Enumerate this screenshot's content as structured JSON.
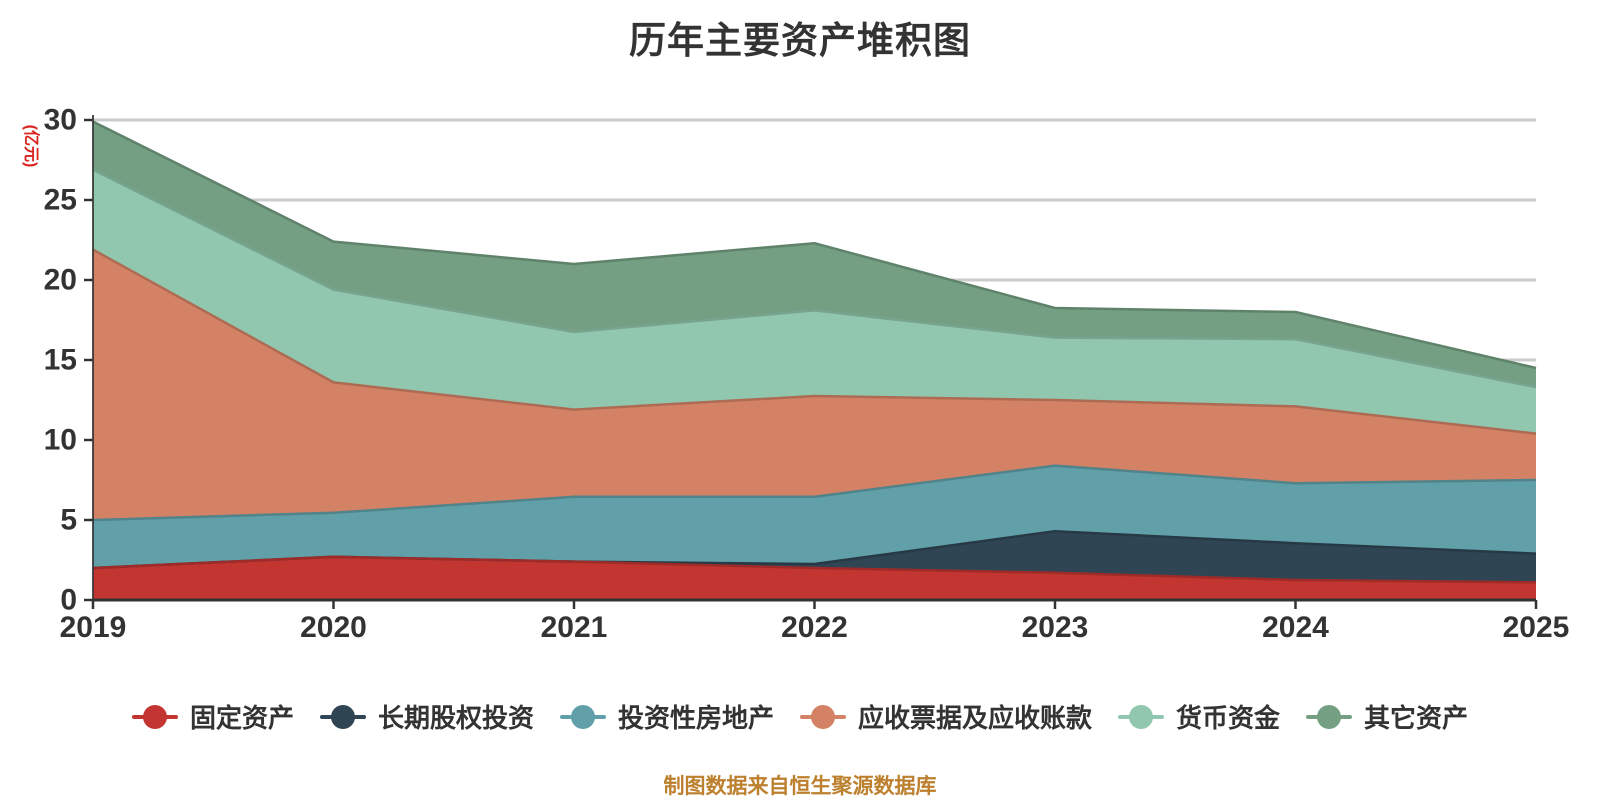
{
  "title": "历年主要资产堆积图",
  "footer": "制图数据来自恒生聚源数据库",
  "y_axis": {
    "name": "(亿元)",
    "tick_labels": [
      "0",
      "5",
      "10",
      "15",
      "20",
      "25",
      "30"
    ],
    "min": 0,
    "max": 30,
    "step": 5
  },
  "x_axis": {
    "labels": [
      "2019",
      "2020",
      "2021",
      "2022",
      "2023",
      "2024",
      "2025"
    ]
  },
  "colors": {
    "title_text": "#333333",
    "axis_text": "#333333",
    "axis_line": "#333333",
    "grid_line": "#cccccc",
    "y_axis_name_red": "#d9231e",
    "footer_gold": "#bc802e",
    "legend_text": "#333333",
    "background": "#ffffff"
  },
  "chart_data": {
    "type": "area",
    "stacked": true,
    "title": "历年主要资产堆积图",
    "x": [
      "2019",
      "2020",
      "2021",
      "2022",
      "2023",
      "2024",
      "2025"
    ],
    "xlabel": "",
    "ylabel": "(亿元)",
    "ylim": [
      0,
      30
    ],
    "grid": true,
    "legend_position": "bottom",
    "series": [
      {
        "name": "固定资产",
        "key": "fixed-assets",
        "color": "#c23531",
        "values": [
          2.0,
          2.7,
          2.4,
          2.0,
          1.7,
          1.25,
          1.1
        ]
      },
      {
        "name": "长期股权投资",
        "key": "long-term-equity-investment",
        "color": "#2f4554",
        "values": [
          0,
          0,
          0,
          0.25,
          2.6,
          2.3,
          1.8
        ]
      },
      {
        "name": "投资性房地产",
        "key": "investment-real-estate",
        "color": "#61a0a8",
        "values": [
          3.0,
          2.75,
          4.05,
          4.2,
          4.1,
          3.75,
          4.6
        ]
      },
      {
        "name": "应收票据及应收账款",
        "key": "notes-and-accounts-receivable",
        "color": "#d48265",
        "values": [
          16.9,
          8.15,
          5.45,
          6.3,
          4.1,
          4.8,
          2.9
        ]
      },
      {
        "name": "货币资金",
        "key": "monetary-funds",
        "color": "#91c7ae",
        "values": [
          5.0,
          5.8,
          4.85,
          5.35,
          3.9,
          4.2,
          2.9
        ]
      },
      {
        "name": "其它资产",
        "key": "other-assets",
        "color": "#749f83",
        "values": [
          3.0,
          3.0,
          4.25,
          4.2,
          1.85,
          1.7,
          1.2
        ]
      }
    ]
  }
}
